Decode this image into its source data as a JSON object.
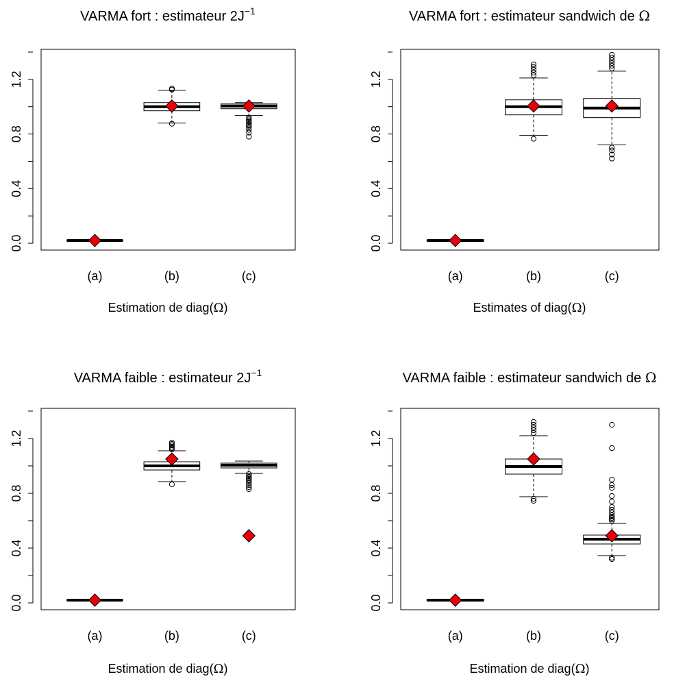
{
  "chart_data": [
    {
      "type": "box",
      "title": "VARMA fort : estimateur",
      "title_math": "2J",
      "title_sup": "−1",
      "xlabel": "Estimation de diag(",
      "xlabel_symbol": "Ω",
      "xlabel_end": ")",
      "categories": [
        "(a)",
        "(b)",
        "(c)"
      ],
      "ylim": [
        -0.05,
        1.42
      ],
      "yticks": [
        0.0,
        0.4,
        0.8,
        1.2
      ],
      "ytick_labels": [
        "0.0",
        "0.4",
        "0.8",
        "1.2"
      ],
      "boxes": [
        {
          "category": "(a)",
          "whisker_low": 0.017,
          "q1": 0.018,
          "median": 0.02,
          "q3": 0.022,
          "whisker_high": 0.023,
          "outliers": []
        },
        {
          "category": "(b)",
          "whisker_low": 0.88,
          "q1": 0.97,
          "median": 1.0,
          "q3": 1.03,
          "whisker_high": 1.12,
          "outliers": [
            0.875,
            1.125,
            1.132
          ]
        },
        {
          "category": "(c)",
          "whisker_low": 0.935,
          "q1": 0.985,
          "median": 1.005,
          "q3": 1.02,
          "whisker_high": 1.03,
          "outliers": [
            0.78,
            0.81,
            0.83,
            0.85,
            0.86,
            0.87,
            0.88,
            0.89,
            0.9,
            0.91,
            0.92
          ]
        }
      ],
      "means": [
        0.02,
        1.005,
        1.005
      ],
      "mean_color": "#e8000b"
    },
    {
      "type": "box",
      "title": "VARMA fort : estimateur sandwich de",
      "title_symbol": "Ω",
      "xlabel": "Estimates of diag(",
      "xlabel_symbol": "Ω",
      "xlabel_end": ")",
      "categories": [
        "(a)",
        "(b)",
        "(c)"
      ],
      "ylim": [
        -0.05,
        1.42
      ],
      "yticks": [
        0.0,
        0.4,
        0.8,
        1.2
      ],
      "ytick_labels": [
        "0.0",
        "0.4",
        "0.8",
        "1.2"
      ],
      "boxes": [
        {
          "category": "(a)",
          "whisker_low": 0.017,
          "q1": 0.018,
          "median": 0.02,
          "q3": 0.022,
          "whisker_high": 0.023,
          "outliers": []
        },
        {
          "category": "(b)",
          "whisker_low": 0.79,
          "q1": 0.94,
          "median": 1.0,
          "q3": 1.05,
          "whisker_high": 1.21,
          "outliers": [
            0.765,
            1.23,
            1.25,
            1.27,
            1.29,
            1.31
          ]
        },
        {
          "category": "(c)",
          "whisker_low": 0.72,
          "q1": 0.92,
          "median": 0.99,
          "q3": 1.06,
          "whisker_high": 1.26,
          "outliers": [
            0.62,
            0.65,
            0.68,
            0.7,
            1.28,
            1.3,
            1.32,
            1.34,
            1.36,
            1.38
          ]
        }
      ],
      "means": [
        0.02,
        1.005,
        1.005
      ],
      "mean_color": "#e8000b"
    },
    {
      "type": "box",
      "title": "VARMA faible : estimateur",
      "title_math": "2J",
      "title_sup": "−1",
      "xlabel": "Estimation de diag(",
      "xlabel_symbol": "Ω",
      "xlabel_end": ")",
      "categories": [
        "(a)",
        "(b)",
        "(c)"
      ],
      "ylim": [
        -0.05,
        1.42
      ],
      "yticks": [
        0.0,
        0.4,
        0.8,
        1.2
      ],
      "ytick_labels": [
        "0.0",
        "0.4",
        "0.8",
        "1.2"
      ],
      "boxes": [
        {
          "category": "(a)",
          "whisker_low": 0.017,
          "q1": 0.018,
          "median": 0.02,
          "q3": 0.022,
          "whisker_high": 0.023,
          "outliers": []
        },
        {
          "category": "(b)",
          "whisker_low": 0.885,
          "q1": 0.97,
          "median": 1.0,
          "q3": 1.03,
          "whisker_high": 1.11,
          "outliers": [
            0.865,
            1.12,
            1.13,
            1.14,
            1.15,
            1.16,
            1.17
          ]
        },
        {
          "category": "(c)",
          "whisker_low": 0.945,
          "q1": 0.985,
          "median": 1.005,
          "q3": 1.02,
          "whisker_high": 1.035,
          "outliers": [
            0.83,
            0.845,
            0.86,
            0.875,
            0.89,
            0.9,
            0.91,
            0.92,
            0.93,
            0.94
          ]
        }
      ],
      "means": [
        0.02,
        1.05,
        0.49
      ],
      "mean_color": "#e8000b"
    },
    {
      "type": "box",
      "title": "VARMA faible : estimateur sandwich de",
      "title_symbol": "Ω",
      "xlabel": "Estimation de diag(",
      "xlabel_symbol": "Ω",
      "xlabel_end": ")",
      "categories": [
        "(a)",
        "(b)",
        "(c)"
      ],
      "ylim": [
        -0.05,
        1.42
      ],
      "yticks": [
        0.0,
        0.4,
        0.8,
        1.2
      ],
      "ytick_labels": [
        "0.0",
        "0.4",
        "0.8",
        "1.2"
      ],
      "boxes": [
        {
          "category": "(a)",
          "whisker_low": 0.017,
          "q1": 0.018,
          "median": 0.02,
          "q3": 0.022,
          "whisker_high": 0.023,
          "outliers": []
        },
        {
          "category": "(b)",
          "whisker_low": 0.775,
          "q1": 0.94,
          "median": 0.995,
          "q3": 1.05,
          "whisker_high": 1.22,
          "outliers": [
            0.745,
            0.76,
            1.24,
            1.26,
            1.28,
            1.3,
            1.32
          ]
        },
        {
          "category": "(c)",
          "whisker_low": 0.345,
          "q1": 0.43,
          "median": 0.465,
          "q3": 0.495,
          "whisker_high": 0.58,
          "outliers": [
            0.32,
            0.33,
            0.6,
            0.61,
            0.62,
            0.63,
            0.64,
            0.66,
            0.68,
            0.7,
            0.74,
            0.78,
            0.84,
            0.86,
            0.9,
            1.13,
            1.3
          ]
        }
      ],
      "means": [
        0.02,
        1.05,
        0.49
      ],
      "mean_color": "#e8000b"
    }
  ]
}
